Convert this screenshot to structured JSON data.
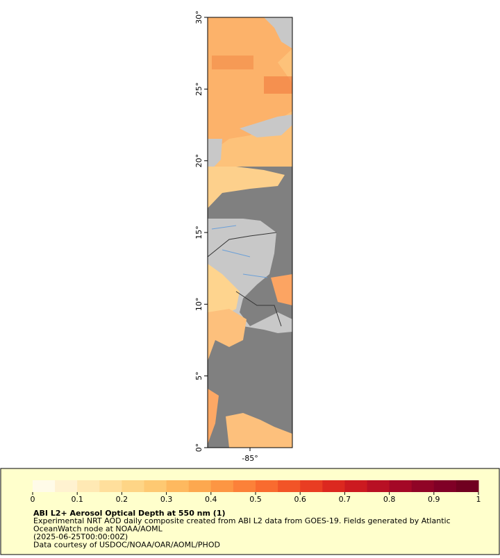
{
  "map": {
    "xlim": [
      -88,
      -82
    ],
    "ylim": [
      0,
      30
    ],
    "xticks": [
      {
        "value": -85,
        "label": "-85°"
      }
    ],
    "yticks": [
      {
        "value": 0,
        "label": "0°"
      },
      {
        "value": 5,
        "label": "5°"
      },
      {
        "value": 10,
        "label": "10°"
      },
      {
        "value": 15,
        "label": "15°"
      },
      {
        "value": 20,
        "label": "20°"
      },
      {
        "value": 25,
        "label": "25°"
      },
      {
        "value": 30,
        "label": "30°"
      }
    ]
  },
  "legend": {
    "title": "ABI L2+ Aerosol Optical Depth at 550 nm (1)",
    "lines": [
      "Experimental NRT AOD daily composite created from ABI L2 data from GOES-19. Fields generated by Atlantic",
      "OceanWatch node at NOAA/AOML",
      "(2025-06-25T00:00:00Z)",
      "Data courtesy of USDOC/NOAA/OAR/AOML/PHOD"
    ],
    "colorbar": {
      "range": [
        0,
        1
      ],
      "ticks": [
        0,
        0.1,
        0.2,
        0.3,
        0.4,
        0.5,
        0.6,
        0.7,
        0.8,
        0.9,
        1
      ],
      "colors": [
        "#fffbe8",
        "#fff2d0",
        "#ffe9b4",
        "#ffdf9c",
        "#fed586",
        "#fec972",
        "#feb95f",
        "#fda84f",
        "#fd9643",
        "#fc8139",
        "#f96b2f",
        "#f25427",
        "#e93d22",
        "#dc281f",
        "#cc1a20",
        "#b81024",
        "#a40826",
        "#900426",
        "#800026",
        "#700020"
      ]
    }
  }
}
